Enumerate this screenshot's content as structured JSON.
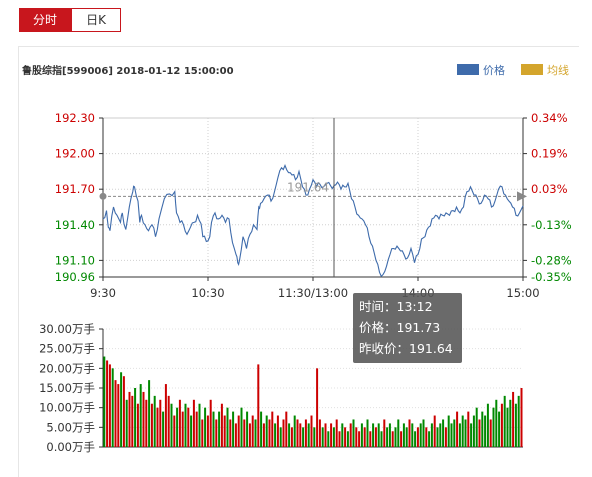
{
  "tabs": [
    {
      "label": "分时",
      "active": true
    },
    {
      "label": "日K",
      "active": false
    }
  ],
  "header": {
    "title": "鲁股综指[599006] 2018-01-12 15:00:00"
  },
  "legend": [
    {
      "label": "价格",
      "color": "#3e6bab"
    },
    {
      "label": "均线",
      "color": "#d4a52c"
    }
  ],
  "colors": {
    "up": "#cc0000",
    "down": "#008800",
    "price_line": "#3e6bab"
  },
  "tooltip": {
    "time": "时间：13:12",
    "price": "价格：191.73",
    "prev_close": "昨收价：191.64"
  },
  "chart_data": [
    {
      "type": "line",
      "name": "price",
      "ylim": [
        190.96,
        192.3
      ],
      "prev_close": 191.64,
      "y_ticks": [
        {
          "label": "192.30",
          "value": 192.3,
          "color": "up"
        },
        {
          "label": "192.00",
          "value": 192.0,
          "color": "up"
        },
        {
          "label": "191.70",
          "value": 191.7,
          "color": "up"
        },
        {
          "label": "191.40",
          "value": 191.4,
          "color": "down"
        },
        {
          "label": "191.10",
          "value": 191.1,
          "color": "down"
        },
        {
          "label": "190.96",
          "value": 190.96,
          "color": "down"
        }
      ],
      "pct_ticks": [
        {
          "label": "0.34%",
          "value": 192.3,
          "color": "up"
        },
        {
          "label": "0.19%",
          "value": 192.0,
          "color": "up"
        },
        {
          "label": "0.03%",
          "value": 191.7,
          "color": "up"
        },
        {
          "label": "-0.13%",
          "value": 191.4,
          "color": "down"
        },
        {
          "label": "-0.28%",
          "value": 191.1,
          "color": "down"
        },
        {
          "label": "-0.35%",
          "value": 190.96,
          "color": "down"
        }
      ],
      "x_labels": [
        {
          "label": "9:30",
          "index": 0
        },
        {
          "label": "10:30",
          "index": 60
        },
        {
          "label": "11:30/13:00",
          "index": 120
        },
        {
          "label": "14:00",
          "index": 180
        },
        {
          "label": "15:00",
          "index": 240
        }
      ],
      "x_count": 241,
      "crosshair_index": 132,
      "inline_label": "191.64",
      "points": [
        [
          0,
          191.45
        ],
        [
          2,
          191.52
        ],
        [
          3,
          191.38
        ],
        [
          4,
          191.35
        ],
        [
          6,
          191.55
        ],
        [
          8,
          191.48
        ],
        [
          10,
          191.42
        ],
        [
          11,
          191.5
        ],
        [
          13,
          191.36
        ],
        [
          15,
          191.55
        ],
        [
          17,
          191.68
        ],
        [
          18,
          191.72
        ],
        [
          20,
          191.6
        ],
        [
          21,
          191.42
        ],
        [
          22,
          191.48
        ],
        [
          24,
          191.4
        ],
        [
          26,
          191.35
        ],
        [
          28,
          191.4
        ],
        [
          30,
          191.3
        ],
        [
          32,
          191.45
        ],
        [
          35,
          191.62
        ],
        [
          38,
          191.66
        ],
        [
          41,
          191.68
        ],
        [
          42,
          191.5
        ],
        [
          44,
          191.42
        ],
        [
          46,
          191.4
        ],
        [
          48,
          191.32
        ],
        [
          50,
          191.38
        ],
        [
          52,
          191.42
        ],
        [
          54,
          191.48
        ],
        [
          56,
          191.41
        ],
        [
          57,
          191.3
        ],
        [
          59,
          191.26
        ],
        [
          61,
          191.3
        ],
        [
          62,
          191.42
        ],
        [
          64,
          191.5
        ],
        [
          66,
          191.45
        ],
        [
          68,
          191.48
        ],
        [
          70,
          191.42
        ],
        [
          72,
          191.45
        ],
        [
          74,
          191.25
        ],
        [
          76,
          191.15
        ],
        [
          77,
          191.08
        ],
        [
          78,
          191.1
        ],
        [
          80,
          191.3
        ],
        [
          82,
          191.2
        ],
        [
          84,
          191.32
        ],
        [
          86,
          191.4
        ],
        [
          88,
          191.36
        ],
        [
          89,
          191.55
        ],
        [
          90,
          191.58
        ],
        [
          92,
          191.62
        ],
        [
          94,
          191.65
        ],
        [
          96,
          191.6
        ],
        [
          98,
          191.68
        ],
        [
          100,
          191.8
        ],
        [
          102,
          191.88
        ],
        [
          104,
          191.9
        ],
        [
          106,
          191.84
        ],
        [
          108,
          191.82
        ],
        [
          110,
          191.78
        ],
        [
          112,
          191.85
        ],
        [
          114,
          191.72
        ],
        [
          116,
          191.65
        ],
        [
          118,
          191.7
        ],
        [
          120,
          191.78
        ],
        [
          122,
          191.72
        ],
        [
          124,
          191.74
        ],
        [
          126,
          191.72
        ],
        [
          128,
          191.75
        ],
        [
          130,
          191.73
        ],
        [
          132,
          191.73
        ],
        [
          134,
          191.76
        ],
        [
          136,
          191.7
        ],
        [
          138,
          191.72
        ],
        [
          140,
          191.75
        ],
        [
          142,
          191.62
        ],
        [
          144,
          191.55
        ],
        [
          146,
          191.48
        ],
        [
          148,
          191.45
        ],
        [
          150,
          191.4
        ],
        [
          152,
          191.3
        ],
        [
          154,
          191.22
        ],
        [
          156,
          191.1
        ],
        [
          158,
          191.0
        ],
        [
          160,
          190.98
        ],
        [
          162,
          191.05
        ],
        [
          164,
          191.15
        ],
        [
          166,
          191.2
        ],
        [
          168,
          191.22
        ],
        [
          170,
          191.18
        ],
        [
          172,
          191.15
        ],
        [
          174,
          191.12
        ],
        [
          176,
          191.2
        ],
        [
          178,
          191.08
        ],
        [
          180,
          191.15
        ],
        [
          182,
          191.28
        ],
        [
          184,
          191.3
        ],
        [
          186,
          191.38
        ],
        [
          188,
          191.45
        ],
        [
          190,
          191.48
        ],
        [
          192,
          191.45
        ],
        [
          194,
          191.48
        ],
        [
          196,
          191.5
        ],
        [
          198,
          191.48
        ],
        [
          200,
          191.52
        ],
        [
          202,
          191.55
        ],
        [
          204,
          191.5
        ],
        [
          206,
          191.55
        ],
        [
          208,
          191.68
        ],
        [
          210,
          191.72
        ],
        [
          212,
          191.65
        ],
        [
          214,
          191.62
        ],
        [
          216,
          191.58
        ],
        [
          218,
          191.65
        ],
        [
          220,
          191.62
        ],
        [
          222,
          191.55
        ],
        [
          224,
          191.6
        ],
        [
          226,
          191.7
        ],
        [
          228,
          191.72
        ],
        [
          230,
          191.65
        ],
        [
          232,
          191.6
        ],
        [
          234,
          191.55
        ],
        [
          236,
          191.48
        ],
        [
          238,
          191.5
        ],
        [
          240,
          191.56
        ]
      ]
    },
    {
      "type": "bar",
      "name": "volume",
      "ylim": [
        0,
        30
      ],
      "y_ticks": [
        {
          "label": "30.00万手",
          "value": 30
        },
        {
          "label": "25.00万手",
          "value": 25
        },
        {
          "label": "20.00万手",
          "value": 20
        },
        {
          "label": "15.00万手",
          "value": 15
        },
        {
          "label": "10.00万手",
          "value": 10
        },
        {
          "label": "5.00万手",
          "value": 5
        },
        {
          "label": "0.00万手",
          "value": 0
        }
      ],
      "bar_count": 150,
      "values": [
        23,
        22,
        21,
        20,
        17,
        16,
        19,
        18,
        12,
        14,
        13,
        15,
        11,
        16,
        14,
        12,
        17,
        11,
        13,
        10,
        12,
        9,
        16,
        13,
        11,
        8,
        10,
        12,
        9,
        11,
        10,
        8,
        12,
        9,
        11,
        7,
        10,
        8,
        12,
        9,
        7,
        9,
        11,
        8,
        10,
        7,
        9,
        6,
        8,
        10,
        7,
        9,
        6,
        8,
        7,
        21,
        9,
        6,
        8,
        7,
        9,
        6,
        8,
        5,
        7,
        9,
        6,
        5,
        8,
        7,
        6,
        5,
        7,
        6,
        8,
        5,
        20,
        7,
        5,
        6,
        4,
        6,
        5,
        7,
        4,
        6,
        5,
        4,
        6,
        7,
        5,
        4,
        6,
        5,
        7,
        4,
        6,
        5,
        6,
        4,
        7,
        5,
        6,
        4,
        5,
        7,
        4,
        6,
        5,
        7,
        6,
        4,
        5,
        6,
        7,
        5,
        4,
        6,
        8,
        5,
        6,
        7,
        5,
        8,
        6,
        7,
        9,
        6,
        8,
        7,
        9,
        6,
        8,
        10,
        7,
        9,
        8,
        11,
        7,
        10,
        12,
        9,
        11,
        13,
        10,
        12,
        14,
        11,
        13,
        15
      ],
      "colors": [
        "down",
        "up",
        "up",
        "down",
        "up",
        "up",
        "down",
        "up",
        "down",
        "up",
        "up",
        "down",
        "up",
        "down",
        "up",
        "up",
        "down",
        "up",
        "down",
        "up",
        "up",
        "down",
        "up",
        "up",
        "down",
        "up",
        "down",
        "up",
        "up",
        "down",
        "up",
        "down",
        "up",
        "up",
        "down",
        "up",
        "down",
        "up",
        "up",
        "down",
        "up",
        "down",
        "up",
        "up",
        "down",
        "up",
        "down",
        "up",
        "up",
        "down",
        "up",
        "down",
        "up",
        "up",
        "down",
        "up",
        "down",
        "up",
        "down",
        "up",
        "up",
        "down",
        "up",
        "down",
        "up",
        "up",
        "down",
        "up",
        "down",
        "up",
        "up",
        "down",
        "up",
        "down",
        "up",
        "down",
        "up",
        "up",
        "down",
        "up",
        "down",
        "up",
        "down",
        "up",
        "up",
        "down",
        "up",
        "down",
        "up",
        "down",
        "up",
        "up",
        "down",
        "up",
        "down",
        "up",
        "down",
        "up",
        "down",
        "down",
        "up",
        "down",
        "down",
        "up",
        "down",
        "down",
        "up",
        "down",
        "down",
        "up",
        "down",
        "down",
        "up",
        "down",
        "down",
        "up",
        "down",
        "down",
        "up",
        "down",
        "down",
        "down",
        "up",
        "down",
        "down",
        "down",
        "up",
        "down",
        "down",
        "down",
        "up",
        "down",
        "down",
        "down",
        "up",
        "down",
        "down",
        "down",
        "up",
        "down",
        "down",
        "down",
        "up",
        "down",
        "down",
        "down",
        "up",
        "down",
        "down"
      ]
    }
  ]
}
